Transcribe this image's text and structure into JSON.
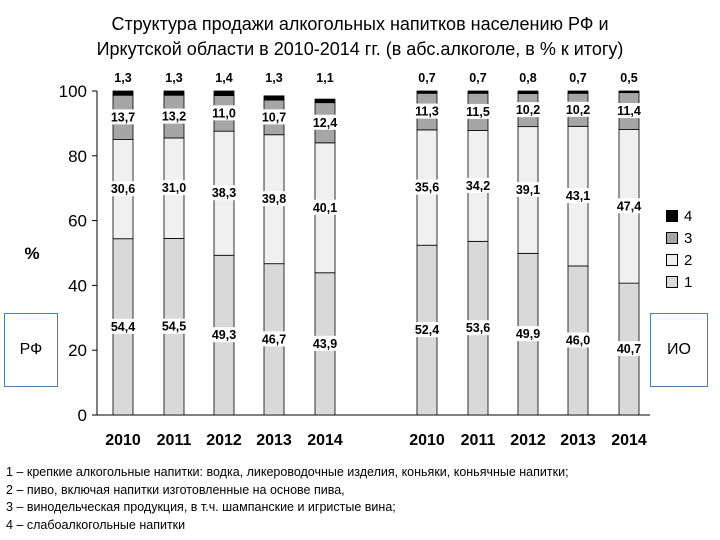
{
  "title_lines": [
    "Структура продажи алкогольных напитков населению РФ и",
    "Иркутской области в 2010-2014 гг. (в абс.алкоголе, в % к итогу)"
  ],
  "box_labels": {
    "rf": "РФ",
    "io": "ИО"
  },
  "notes": [
    "1 – крепкие алкогольные напитки: водка, ликероводочные изделия, коньяки, коньячные напитки;",
    "2 – пиво, включая напитки изготовленные на основе пива,",
    "3 – винодельческая продукция, в т.ч. шампанские и игристые вина;",
    "4 – слабоалкогольные напитки"
  ],
  "colors": {
    "s1": "#d9d9d9",
    "s2": "#f0f0f0",
    "s3": "#a6a6a6",
    "s4": "#000000"
  },
  "chart_data": {
    "type": "bar",
    "stacked": true,
    "ylabel": "%",
    "ylim": [
      0,
      100
    ],
    "yticks": [
      "0",
      "20",
      "40",
      "60",
      "80",
      "100"
    ],
    "legend": {
      "position": "right",
      "entries": [
        "4",
        "3",
        "2",
        "1"
      ]
    },
    "groups": [
      {
        "box_label": "РФ",
        "categories": [
          "2010",
          "2011",
          "2012",
          "2013",
          "2014"
        ],
        "series": [
          {
            "name": "1",
            "values": [
              54.4,
              54.5,
              49.3,
              46.7,
              43.9
            ],
            "labels": [
              "54,4",
              "54,5",
              "49,3",
              "46,7",
              "43,9"
            ]
          },
          {
            "name": "2",
            "values": [
              30.6,
              31.0,
              38.3,
              39.8,
              40.1
            ],
            "labels": [
              "30,6",
              "31,0",
              "38,3",
              "39,8",
              "40,1"
            ]
          },
          {
            "name": "3",
            "values": [
              13.7,
              13.2,
              11.0,
              10.7,
              12.4
            ],
            "labels": [
              "13,7",
              "13,2",
              "11,0",
              "10,7",
              "12,4"
            ]
          },
          {
            "name": "4",
            "values": [
              1.3,
              1.3,
              1.4,
              1.3,
              1.1
            ],
            "labels": [
              "1,3",
              "1,3",
              "1,4",
              "1,3",
              "1,1"
            ]
          }
        ]
      },
      {
        "box_label": "ИО",
        "categories": [
          "2010",
          "2011",
          "2012",
          "2013",
          "2014"
        ],
        "series": [
          {
            "name": "1",
            "values": [
              52.4,
              53.6,
              49.9,
              46.0,
              40.7
            ],
            "labels": [
              "52,4",
              "53,6",
              "49,9",
              "46,0",
              "40,7"
            ]
          },
          {
            "name": "2",
            "values": [
              35.6,
              34.2,
              39.1,
              43.1,
              47.4
            ],
            "labels": [
              "35,6",
              "34,2",
              "39,1",
              "43,1",
              "47,4"
            ]
          },
          {
            "name": "3",
            "values": [
              11.3,
              11.5,
              10.2,
              10.2,
              11.4
            ],
            "labels": [
              "11,3",
              "11,5",
              "10,2",
              "10,2",
              "11,4"
            ]
          },
          {
            "name": "4",
            "values": [
              0.7,
              0.7,
              0.8,
              0.7,
              0.5
            ],
            "labels": [
              "0,7",
              "0,7",
              "0,8",
              "0,7",
              "0,5"
            ]
          }
        ]
      }
    ]
  }
}
